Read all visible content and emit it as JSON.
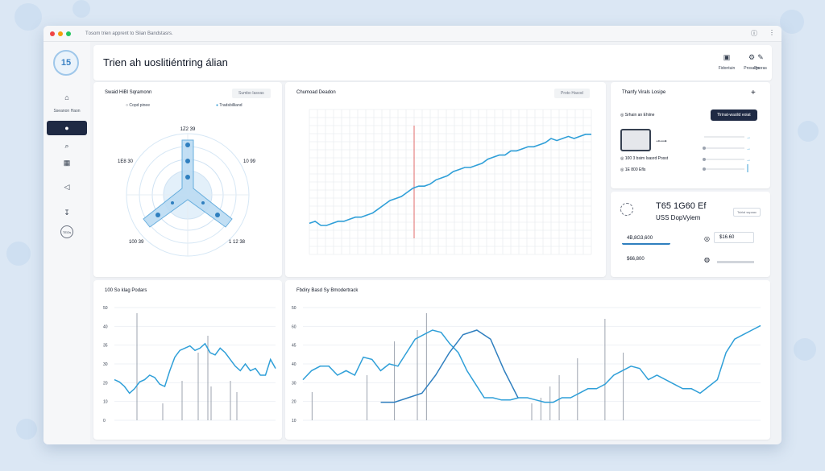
{
  "window": {
    "title": "Tоsom trien apprent to Slian Bandstasrs."
  },
  "sidebar": {
    "logo_text": "15",
    "label": "Sseanon Haon",
    "icons": [
      "home-icon",
      "user-icon",
      "search-icon",
      "grid-icon",
      "megaphone-icon",
      "thermometer-icon",
      "circle-badge-icon"
    ],
    "badge_text": "TEOs"
  },
  "header": {
    "title": "Trien ah uoslitiéntring álian",
    "actions": [
      {
        "label": "Fidontuin",
        "icon": "chart-icon"
      },
      {
        "label": "Pooras",
        "icon": "pen-icon"
      },
      {
        "label": "Prosaigs",
        "icon": "settings-icon"
      }
    ]
  },
  "radar": {
    "title": "Swaid HiBl Sqramonn",
    "chip": "Sumbo Iasvas",
    "legend": [
      {
        "label": "Copd pinee"
      },
      {
        "label": "Tradsbilliand"
      }
    ],
    "labels": {
      "top": "1Z2 39",
      "left": "1E8 30",
      "right": "10 99",
      "bottom_left": "100 39",
      "bottom_right": "1 12 38"
    }
  },
  "line_top": {
    "title": "Chumoad Deadon",
    "chip": "Proto Hacod",
    "chart_data": {
      "type": "line",
      "series": [
        {
          "values": [
            45,
            46,
            44,
            44,
            45,
            46,
            46,
            47,
            48,
            48,
            49,
            50,
            52,
            54,
            56,
            57,
            58,
            60,
            62,
            63,
            63,
            64,
            66,
            67,
            68,
            70,
            71,
            72,
            72,
            73,
            74,
            76,
            77,
            78,
            78,
            80,
            80,
            81,
            82,
            82,
            83,
            84,
            86,
            85,
            86,
            87,
            86,
            87,
            88,
            88
          ]
        }
      ],
      "ylim": [
        30,
        100
      ]
    }
  },
  "visits": {
    "title": "Thanfy Virals Losipe",
    "add_label": "+",
    "items": [
      "Srhain an Ehiine",
      "100 3 bsim Isasrd Posst",
      "1E 800 Efls"
    ],
    "button": "Tlrinat-waslid eoiat"
  },
  "stats": {
    "value": "T65 1G60 Ef",
    "subtitle": "USS DopVyiem",
    "badge": "Tsirlal sspaac",
    "inputs": [
      {
        "value": "4B,8G3,600"
      },
      {
        "value": "$16.60"
      },
      {
        "value": "$66,800"
      }
    ]
  },
  "bottom_left": {
    "title": "100 So klag Podars",
    "chart_data": {
      "type": "line",
      "yticks": [
        "50",
        "40",
        "35",
        "30",
        "20",
        "10",
        "0"
      ],
      "series": [
        {
          "values": [
            18,
            17,
            15,
            12,
            14,
            17,
            18,
            20,
            19,
            16,
            15,
            22,
            28,
            31,
            32,
            33,
            31,
            32,
            34,
            30,
            29,
            32,
            30,
            27,
            24,
            22,
            25,
            22,
            23,
            20,
            20,
            27,
            23
          ]
        }
      ],
      "ylim": [
        0,
        50
      ]
    }
  },
  "bottom_right": {
    "title": "Fbdiry Basd Sy Bmodertrack",
    "chart_data": {
      "type": "line",
      "yticks": [
        "50",
        "60",
        "45",
        "40",
        "30",
        "20",
        "10"
      ],
      "series": [
        {
          "values": [
            18,
            22,
            24,
            24,
            20,
            22,
            20,
            28,
            27,
            22,
            25,
            24,
            30,
            36,
            38,
            40,
            39,
            34,
            30,
            22,
            16,
            10,
            10,
            9,
            9,
            10,
            10,
            9,
            8,
            8,
            10,
            10,
            12,
            14,
            14,
            16,
            20,
            22,
            24,
            23,
            18,
            20,
            18,
            16,
            14,
            14,
            12,
            15,
            18,
            30,
            36,
            38,
            40,
            42
          ]
        },
        {
          "values": [
            8,
            8,
            10,
            12,
            20,
            30,
            38,
            40,
            36,
            22,
            10
          ]
        }
      ],
      "ylim": [
        0,
        50
      ]
    }
  }
}
